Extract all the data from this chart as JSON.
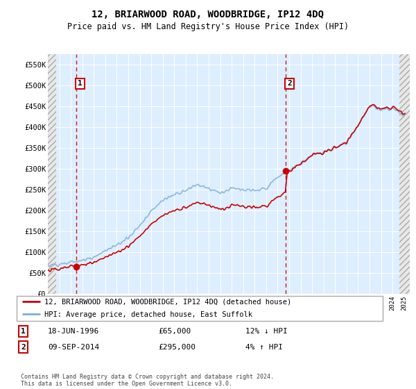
{
  "title": "12, BRIARWOOD ROAD, WOODBRIDGE, IP12 4DQ",
  "subtitle": "Price paid vs. HM Land Registry's House Price Index (HPI)",
  "ylim": [
    0,
    575000
  ],
  "yticks": [
    0,
    50000,
    100000,
    150000,
    200000,
    250000,
    300000,
    350000,
    400000,
    450000,
    500000,
    550000
  ],
  "ytick_labels": [
    "£0",
    "£50K",
    "£100K",
    "£150K",
    "£200K",
    "£250K",
    "£300K",
    "£350K",
    "£400K",
    "£450K",
    "£500K",
    "£550K"
  ],
  "background_color": "#ffffff",
  "plot_bg_color": "#ddeeff",
  "grid_color": "#ffffff",
  "sale1_date": 1996.46,
  "sale1_price": 65000,
  "sale1_label": "1",
  "sale1_date_str": "18-JUN-1996",
  "sale1_price_str": "£65,000",
  "sale1_hpi_str": "12% ↓ HPI",
  "sale2_date": 2014.68,
  "sale2_price": 295000,
  "sale2_label": "2",
  "sale2_date_str": "09-SEP-2014",
  "sale2_price_str": "£295,000",
  "sale2_hpi_str": "4% ↑ HPI",
  "legend_line1": "12, BRIARWOOD ROAD, WOODBRIDGE, IP12 4DQ (detached house)",
  "legend_line2": "HPI: Average price, detached house, East Suffolk",
  "footer": "Contains HM Land Registry data © Crown copyright and database right 2024.\nThis data is licensed under the Open Government Licence v3.0.",
  "line_color_red": "#cc0000",
  "line_color_blue": "#7bafd4",
  "xmin": 1994,
  "xmax": 2025.5,
  "hatch_left_end": 1994.75,
  "hatch_right_start": 2024.58
}
